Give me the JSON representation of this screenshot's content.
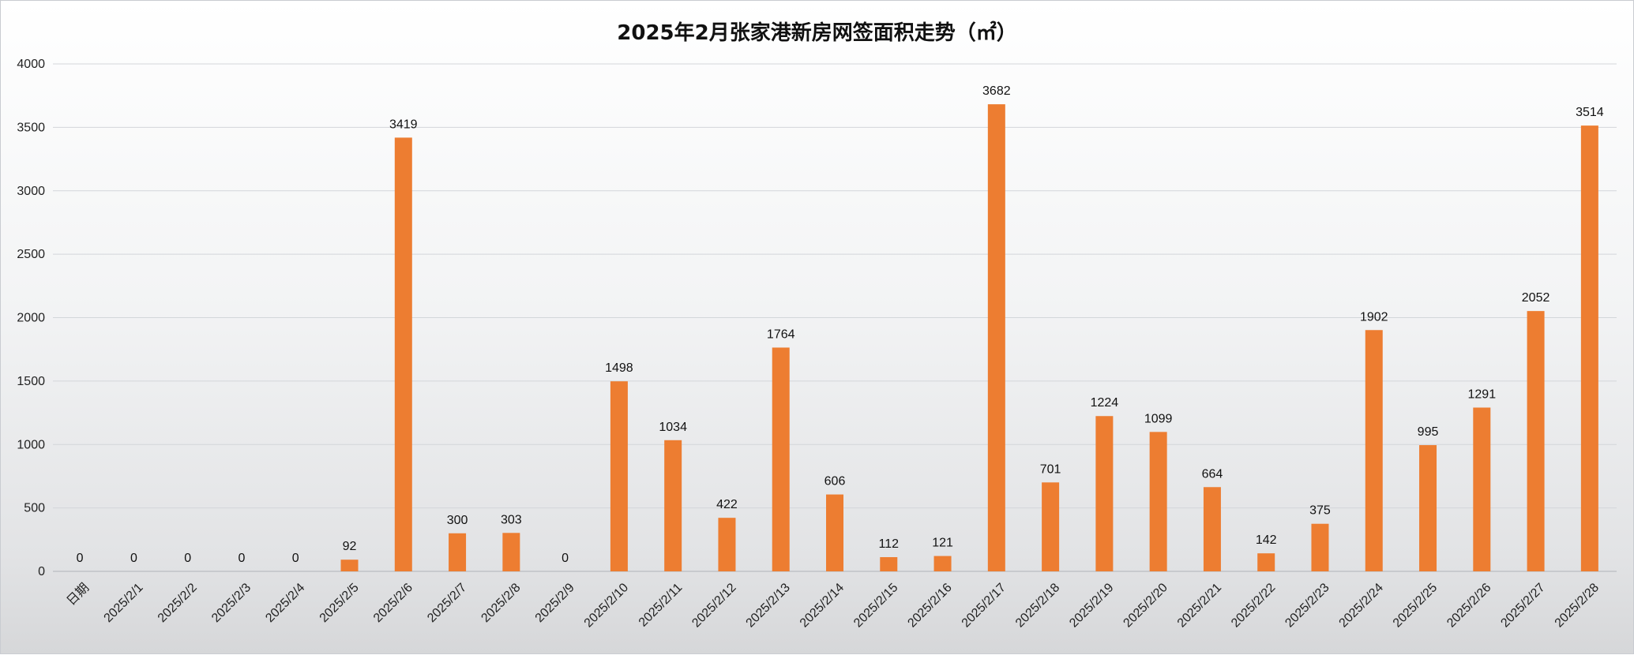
{
  "chart_data": {
    "type": "bar",
    "title": "2025年2月张家港新房网签面积走势（㎡）",
    "categories": [
      "日期",
      "2025/2/1",
      "2025/2/2",
      "2025/2/3",
      "2025/2/4",
      "2025/2/5",
      "2025/2/6",
      "2025/2/7",
      "2025/2/8",
      "2025/2/9",
      "2025/2/10",
      "2025/2/11",
      "2025/2/12",
      "2025/2/13",
      "2025/2/14",
      "2025/2/15",
      "2025/2/16",
      "2025/2/17",
      "2025/2/18",
      "2025/2/19",
      "2025/2/20",
      "2025/2/21",
      "2025/2/22",
      "2025/2/23",
      "2025/2/24",
      "2025/2/25",
      "2025/2/26",
      "2025/2/27",
      "2025/2/28"
    ],
    "values": [
      0,
      0,
      0,
      0,
      0,
      92,
      3419,
      300,
      303,
      0,
      1498,
      1034,
      422,
      1764,
      606,
      112,
      121,
      3682,
      701,
      1224,
      1099,
      664,
      142,
      375,
      1902,
      995,
      1291,
      2052,
      3514
    ],
    "yticks": [
      0,
      500,
      1000,
      1500,
      2000,
      2500,
      3000,
      3500,
      4000
    ],
    "ylim": [
      0,
      4000
    ],
    "grid": true,
    "legend": "none",
    "bar_color": "#ED7D31",
    "xlabel": "",
    "ylabel": ""
  }
}
